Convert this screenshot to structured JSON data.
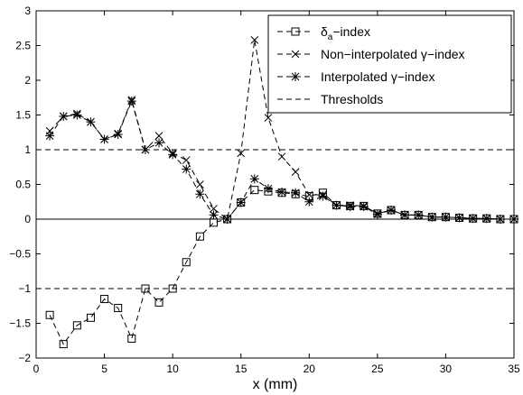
{
  "chart_data": {
    "type": "line",
    "title": "",
    "xlabel": "x (mm)",
    "ylabel": "",
    "xlim": [
      0,
      35
    ],
    "ylim": [
      -2,
      3
    ],
    "xticks": [
      0,
      5,
      10,
      15,
      20,
      25,
      30,
      35
    ],
    "xtick_labels": [
      "0",
      "5",
      "10",
      "15",
      "20",
      "25",
      "30",
      "35"
    ],
    "yticks": [
      -2,
      -1.5,
      -1,
      -0.5,
      0,
      0.5,
      1,
      1.5,
      2,
      2.5,
      3
    ],
    "ytick_labels": [
      "−2",
      "−1.5",
      "−1",
      "−0.5",
      "0",
      "0.5",
      "1",
      "1.5",
      "2",
      "2.5",
      "3"
    ],
    "grid": false,
    "legend_position": "top-right",
    "colors": {
      "line": "#000000",
      "background": "#ffffff"
    },
    "series": [
      {
        "name": "δa−index",
        "legend_main": "δ",
        "legend_sub": "a",
        "legend_rest": "−index",
        "marker": "square",
        "line": "dashed",
        "x": [
          1,
          2,
          3,
          4,
          5,
          6,
          7,
          8,
          9,
          10,
          11,
          12,
          13,
          14,
          15,
          16,
          17,
          18,
          19,
          20,
          21,
          22,
          23,
          24,
          25,
          26,
          27,
          28,
          29,
          30,
          31,
          32,
          33,
          34,
          35
        ],
        "y": [
          -1.38,
          -1.8,
          -1.53,
          -1.42,
          -1.15,
          -1.28,
          -1.72,
          -1.0,
          -1.2,
          -1.0,
          -0.62,
          -0.25,
          -0.05,
          0.0,
          0.24,
          0.42,
          0.4,
          0.38,
          0.36,
          0.33,
          0.38,
          0.2,
          0.19,
          0.19,
          0.08,
          0.13,
          0.06,
          0.06,
          0.03,
          0.03,
          0.02,
          0.01,
          0.01,
          0.0,
          0.0
        ]
      },
      {
        "name": "Non−interpolated γ−index",
        "marker": "x",
        "line": "dashed",
        "x": [
          1,
          2,
          3,
          4,
          5,
          6,
          7,
          8,
          9,
          10,
          11,
          12,
          13,
          14,
          15,
          16,
          17,
          18,
          19,
          20,
          21,
          22,
          23,
          24,
          25,
          26,
          27,
          28,
          29,
          30,
          31,
          32,
          33,
          34,
          35
        ],
        "y": [
          1.27,
          1.48,
          1.52,
          1.4,
          1.15,
          1.23,
          1.72,
          1.0,
          1.2,
          0.95,
          0.85,
          0.5,
          0.15,
          0.0,
          0.95,
          2.58,
          1.46,
          0.9,
          0.68,
          0.35,
          0.35,
          0.2,
          0.2,
          0.19,
          0.08,
          0.13,
          0.06,
          0.06,
          0.03,
          0.03,
          0.02,
          0.01,
          0.01,
          0.0,
          0.0
        ]
      },
      {
        "name": "Interpolated γ−index",
        "marker": "star",
        "line": "dashed",
        "x": [
          1,
          2,
          3,
          4,
          5,
          6,
          7,
          8,
          9,
          10,
          11,
          12,
          13,
          14,
          15,
          16,
          17,
          18,
          19,
          20,
          21,
          22,
          23,
          24,
          25,
          26,
          27,
          28,
          29,
          30,
          31,
          32,
          33,
          34,
          35
        ],
        "y": [
          1.2,
          1.48,
          1.5,
          1.4,
          1.15,
          1.22,
          1.7,
          1.0,
          1.1,
          0.93,
          0.72,
          0.36,
          0.06,
          0.0,
          0.24,
          0.58,
          0.44,
          0.39,
          0.38,
          0.25,
          0.33,
          0.2,
          0.18,
          0.18,
          0.07,
          0.13,
          0.06,
          0.06,
          0.03,
          0.03,
          0.02,
          0.01,
          0.01,
          0.0,
          0.0
        ]
      }
    ],
    "thresholds": {
      "name": "Thresholds",
      "line": "dashed",
      "y": [
        1,
        -1
      ]
    },
    "zero_line": {
      "y": 0,
      "line": "solid"
    }
  }
}
